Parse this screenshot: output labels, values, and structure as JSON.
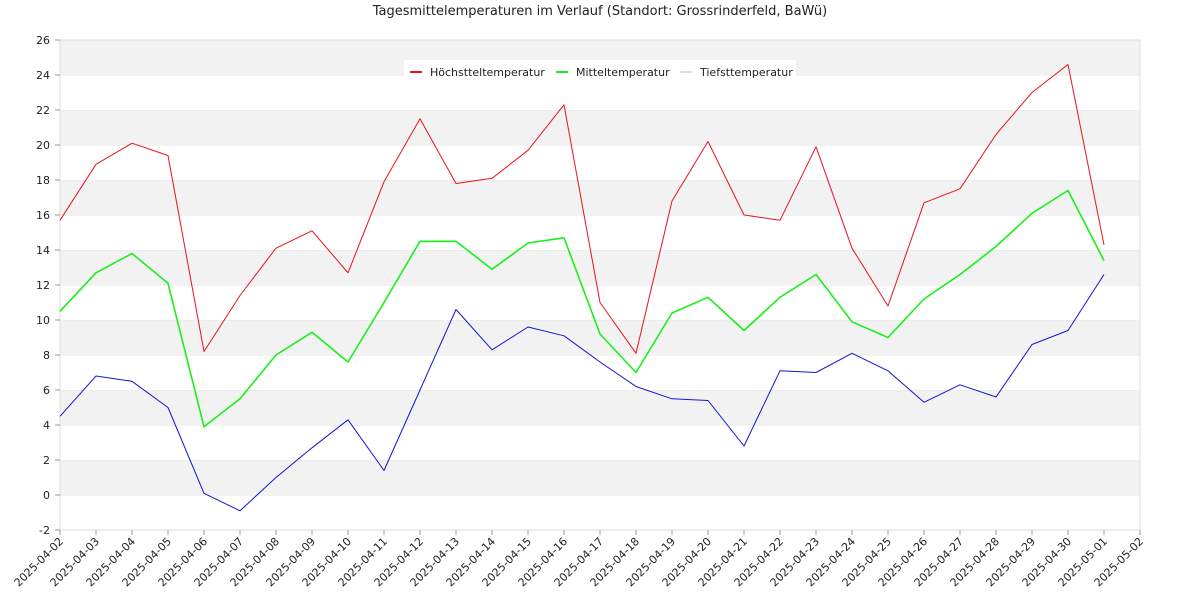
{
  "chart_data": {
    "type": "line",
    "title": "Tagesmittelemperaturen im Verlauf (Standort: Grossrinderfeld, BaWü)",
    "xlabel": "",
    "ylabel": "",
    "ylim": [
      -2,
      26
    ],
    "yticks": [
      -2,
      0,
      2,
      4,
      6,
      8,
      10,
      12,
      14,
      16,
      18,
      20,
      22,
      24,
      26
    ],
    "xticks": [
      "2025-04-02",
      "2025-04-03",
      "2025-04-04",
      "2025-04-05",
      "2025-04-06",
      "2025-04-07",
      "2025-04-08",
      "2025-04-09",
      "2025-04-10",
      "2025-04-11",
      "2025-04-12",
      "2025-04-13",
      "2025-04-14",
      "2025-04-15",
      "2025-04-16",
      "2025-04-17",
      "2025-04-18",
      "2025-04-19",
      "2025-04-20",
      "2025-04-21",
      "2025-04-22",
      "2025-04-23",
      "2025-04-24",
      "2025-04-25",
      "2025-04-26",
      "2025-04-27",
      "2025-04-28",
      "2025-04-29",
      "2025-04-30",
      "2025-05-01",
      "2025-05-02"
    ],
    "x": [
      "2025-04-02",
      "2025-04-03",
      "2025-04-04",
      "2025-04-05",
      "2025-04-06",
      "2025-04-07",
      "2025-04-08",
      "2025-04-09",
      "2025-04-10",
      "2025-04-11",
      "2025-04-12",
      "2025-04-13",
      "2025-04-14",
      "2025-04-15",
      "2025-04-16",
      "2025-04-17",
      "2025-04-18",
      "2025-04-19",
      "2025-04-20",
      "2025-04-21",
      "2025-04-22",
      "2025-04-23",
      "2025-04-24",
      "2025-04-25",
      "2025-04-26",
      "2025-04-27",
      "2025-04-28",
      "2025-04-29",
      "2025-04-30",
      "2025-05-01"
    ],
    "grid": "horizontal bands",
    "legend_position": "top-center",
    "series": [
      {
        "name": "Höchstteltemperatur",
        "color": "#e8131b",
        "values": [
          15.7,
          18.9,
          20.1,
          19.4,
          8.2,
          11.4,
          14.1,
          15.1,
          12.7,
          17.9,
          21.5,
          17.8,
          18.1,
          19.7,
          22.3,
          11.0,
          8.1,
          16.8,
          20.2,
          16.0,
          15.7,
          19.9,
          14.1,
          10.8,
          16.7,
          17.5,
          20.6,
          23.0,
          24.6,
          14.3
        ]
      },
      {
        "name": "Mitteltemperatur",
        "color": "#19f01b",
        "values": [
          10.5,
          12.7,
          13.8,
          12.1,
          3.9,
          5.5,
          8.0,
          9.3,
          7.6,
          11.0,
          14.5,
          14.5,
          12.9,
          14.4,
          14.7,
          9.2,
          7.0,
          10.4,
          11.3,
          9.4,
          11.3,
          12.6,
          9.9,
          9.0,
          11.2,
          12.6,
          14.2,
          16.1,
          17.4,
          13.4
        ]
      },
      {
        "name": "Tiefsttemperatur",
        "color": "#1414d6",
        "legend_color": "#dddddd",
        "values": [
          4.5,
          6.8,
          6.5,
          5.0,
          0.1,
          -0.9,
          1.0,
          2.7,
          4.3,
          1.4,
          6.0,
          10.6,
          8.3,
          9.6,
          9.1,
          7.6,
          6.2,
          5.5,
          5.4,
          2.8,
          7.1,
          7.0,
          8.1,
          7.1,
          5.3,
          6.3,
          5.6,
          8.6,
          9.4,
          12.6
        ]
      }
    ]
  }
}
